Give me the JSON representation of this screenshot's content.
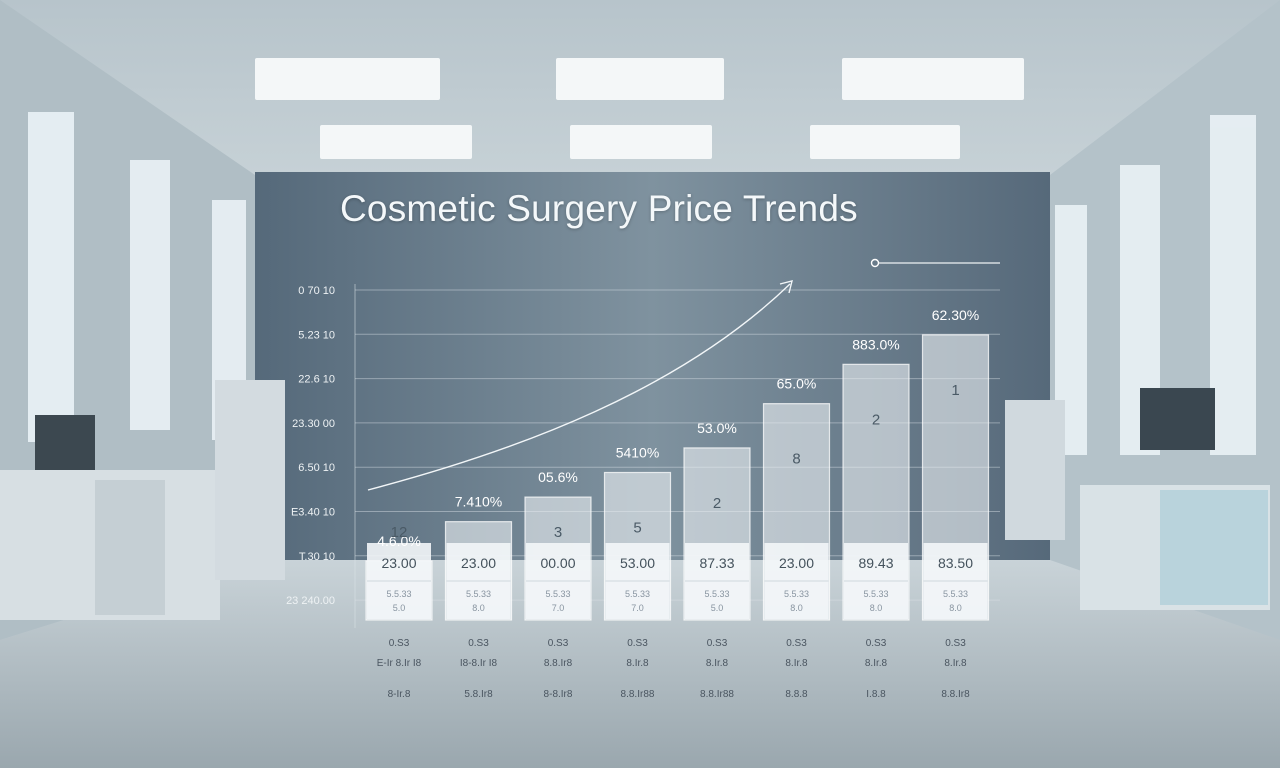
{
  "chart_data": {
    "type": "bar",
    "title": "Cosmetic Surgery Price Trends",
    "xlabel": "",
    "ylabel": "",
    "grid": true,
    "legend": "top-right",
    "y_tick_labels": [
      "0 70 10",
      "5.23 10",
      "22.6 10",
      "23.30 00",
      "6.50 10",
      "E3.40 10",
      "T.30 10",
      "23 240.00"
    ],
    "bars": [
      {
        "pct_label": "4.6.0%",
        "inside_label": "12",
        "value_label": "23.00",
        "sub_label_1": "5.5.33",
        "sub_label_2": "5.0",
        "x_label_1": "0.S3",
        "x_label_2": "E-Ir 8.Ir I8",
        "x_label_3": "8-Ir.8"
      },
      {
        "pct_label": "7.410%",
        "inside_label": "",
        "value_label": "23.00",
        "sub_label_1": "5.5.33",
        "sub_label_2": "8.0",
        "x_label_1": "0.S3",
        "x_label_2": "I8-8.Ir I8",
        "x_label_3": "5.8.Ir8"
      },
      {
        "pct_label": "05.6%",
        "inside_label": "3",
        "value_label": "00.00",
        "sub_label_1": "5.5.33",
        "sub_label_2": "7.0",
        "x_label_1": "0.S3",
        "x_label_2": "8.8.Ir8",
        "x_label_3": "8-8.Ir8"
      },
      {
        "pct_label": "5410%",
        "inside_label": "5",
        "value_label": "53.00",
        "sub_label_1": "5.5.33",
        "sub_label_2": "7.0",
        "x_label_1": "0.S3",
        "x_label_2": "8.Ir.8",
        "x_label_3": "8.8.Ir88"
      },
      {
        "pct_label": "53.0%",
        "inside_label": "2",
        "value_label": "87.33",
        "sub_label_1": "5.5.33",
        "sub_label_2": "5.0",
        "x_label_1": "0.S3",
        "x_label_2": "8.Ir.8",
        "x_label_3": "8.8.Ir88"
      },
      {
        "pct_label": "65.0%",
        "inside_label": "8",
        "value_label": "23.00",
        "sub_label_1": "5.5.33",
        "sub_label_2": "8.0",
        "x_label_1": "0.S3",
        "x_label_2": "8.Ir.8",
        "x_label_3": "8.8.8"
      },
      {
        "pct_label": "883.0%",
        "inside_label": "2",
        "value_label": "89.43",
        "sub_label_1": "5.5.33",
        "sub_label_2": "8.0",
        "x_label_1": "0.S3",
        "x_label_2": "8.Ir.8",
        "x_label_3": "I.8.8"
      },
      {
        "pct_label": "62.30%",
        "inside_label": "1",
        "value_label": "83.50",
        "sub_label_1": "5.5.33",
        "sub_label_2": "8.0",
        "x_label_1": "0.S3",
        "x_label_2": "8.Ir.8",
        "x_label_3": "8.8.Ir8"
      }
    ],
    "values": [
      12,
      20,
      25,
      30,
      35,
      44,
      52,
      58
    ],
    "ylim": [
      0,
      60
    ]
  }
}
